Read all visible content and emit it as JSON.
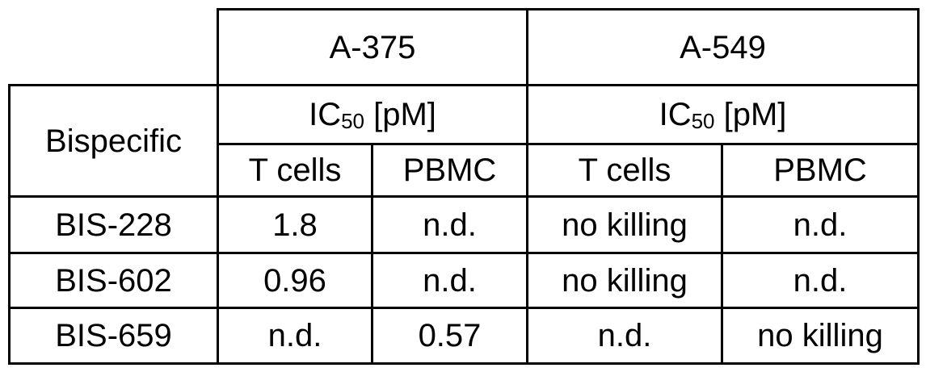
{
  "table": {
    "corner_label": "Bispecific",
    "groups": [
      {
        "name": "A-375",
        "metric": "IC",
        "metric_sub": "50",
        "metric_unit": " [pM]",
        "cols": [
          "T cells",
          "PBMC"
        ]
      },
      {
        "name": "A-549",
        "metric": "IC",
        "metric_sub": "50",
        "metric_unit": " [pM]",
        "cols": [
          "T cells",
          "PBMC"
        ]
      }
    ],
    "rows": [
      {
        "name": "BIS-228",
        "values": [
          "1.8",
          "n.d.",
          "no killing",
          "n.d."
        ]
      },
      {
        "name": "BIS-602",
        "values": [
          "0.96",
          "n.d.",
          "no killing",
          "n.d."
        ]
      },
      {
        "name": "BIS-659",
        "values": [
          "n.d.",
          "0.57",
          "n.d.",
          "no killing"
        ]
      }
    ]
  }
}
